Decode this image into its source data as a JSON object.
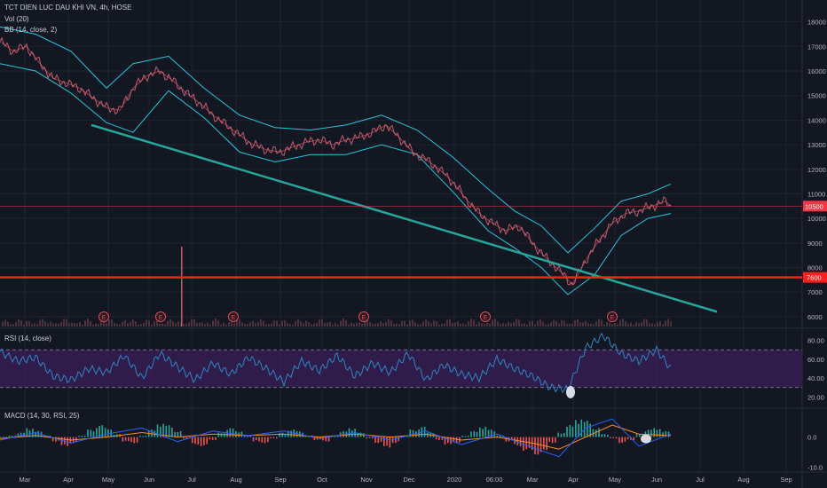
{
  "header": {
    "symbol_line": "TCT DIEN LUC DAU KHI VN, 4h, HOSE",
    "volume_label": "Vol (20)",
    "bb_label": "BB (14, close, 2)",
    "rsi_label": "RSI (14, close)",
    "macd_label": "MACD (14, 30, RSI, 25)"
  },
  "colors": {
    "background": "#131722",
    "grid": "#1f2333",
    "axis_text": "#b2b5be",
    "candle_line": "#c05a6a",
    "bollinger": "#26c6da",
    "trendline": "#26a69a",
    "support_line": "#ff1e1e",
    "price_marker": "#f23645",
    "rsi_band": "#3b1f5a",
    "rsi_line": "#2e86c1",
    "macd_line": "#2962ff",
    "signal_line": "#ff8c1a",
    "hist_up": "#26a69a",
    "hist_down": "#ef5350"
  },
  "chart_data": [
    {
      "type": "line",
      "pane": "price",
      "x_tick_labels": [
        "Mar",
        "Apr",
        "May",
        "Jun",
        "Jul",
        "Aug",
        "Sep",
        "Oct",
        "Nov",
        "Dec",
        "2020",
        "06:00",
        "Mar",
        "Apr",
        "May",
        "Jun",
        "Jul",
        "Aug",
        "Sep"
      ],
      "y_ticks": [
        6000,
        7000,
        8000,
        9000,
        10000,
        11000,
        12000,
        13000,
        14000,
        15000,
        16000,
        17000,
        18000
      ],
      "ylim": [
        5600,
        18600
      ],
      "price_path": {
        "x": [
          0,
          15,
          30,
          45,
          60,
          75,
          90,
          105,
          120,
          135,
          150,
          165,
          180,
          195,
          210,
          225,
          240,
          255,
          270,
          285,
          300,
          315,
          330,
          345,
          360,
          375,
          390,
          405,
          420,
          435,
          450,
          465,
          480,
          495,
          510,
          525,
          540,
          555,
          570,
          585,
          600,
          615,
          630,
          645,
          660,
          675,
          690,
          705,
          720,
          735,
          750,
          756
        ],
        "y": [
          17200,
          16800,
          17000,
          16300,
          15700,
          15500,
          15300,
          14900,
          14500,
          14400,
          15300,
          15800,
          16000,
          15600,
          15100,
          14700,
          14200,
          13800,
          13400,
          13000,
          12800,
          12700,
          12900,
          13100,
          13200,
          13000,
          13200,
          13300,
          13500,
          13800,
          13300,
          12700,
          12400,
          12000,
          11500,
          10800,
          10200,
          9800,
          9500,
          9700,
          9000,
          8400,
          7900,
          7300,
          8300,
          9100,
          9800,
          10200,
          10300,
          10500,
          10700,
          10500
        ]
      },
      "bollinger_upper": {
        "x": [
          0,
          40,
          80,
          120,
          150,
          190,
          230,
          270,
          310,
          350,
          390,
          430,
          470,
          510,
          550,
          580,
          610,
          640,
          670,
          700,
          730,
          756
        ],
        "y": [
          17800,
          17500,
          16800,
          15300,
          16300,
          16600,
          15300,
          14200,
          13700,
          13600,
          13800,
          14200,
          13600,
          12500,
          11200,
          10300,
          9700,
          8600,
          9600,
          10700,
          11000,
          11400
        ]
      },
      "bollinger_lower": {
        "x": [
          0,
          40,
          80,
          120,
          150,
          190,
          230,
          270,
          310,
          350,
          390,
          430,
          470,
          510,
          550,
          580,
          610,
          640,
          670,
          700,
          730,
          756
        ],
        "y": [
          16300,
          16000,
          15100,
          13900,
          13500,
          15200,
          14100,
          12700,
          12300,
          12600,
          12600,
          13000,
          12600,
          11100,
          9500,
          8800,
          8000,
          6900,
          7700,
          9300,
          10000,
          10200
        ]
      },
      "trendline": {
        "x": [
          103,
          808
        ],
        "y": [
          13800,
          6200
        ]
      },
      "support_level": 7600,
      "last_price": 10500,
      "last_price_label": "10500",
      "support_label": "7600",
      "earnings_marker_label": "E",
      "earnings_x": [
        117,
        181,
        263,
        410,
        547,
        690
      ],
      "volume_spike": {
        "x": 204
      }
    },
    {
      "type": "line",
      "pane": "rsi",
      "y_ticks": [
        20,
        40,
        60,
        80
      ],
      "y_tick_labels": [
        "20.00",
        "40.00",
        "60.00",
        "80.00"
      ],
      "ylim": [
        10,
        90
      ],
      "band": [
        30,
        70
      ],
      "points": {
        "x": [
          0,
          20,
          40,
          60,
          80,
          100,
          120,
          140,
          160,
          180,
          200,
          220,
          240,
          260,
          280,
          300,
          320,
          340,
          360,
          380,
          400,
          420,
          440,
          460,
          480,
          500,
          520,
          540,
          560,
          580,
          600,
          620,
          640,
          660,
          680,
          700,
          720,
          740,
          756
        ],
        "y": [
          68,
          58,
          62,
          42,
          38,
          50,
          46,
          64,
          40,
          66,
          52,
          38,
          56,
          44,
          62,
          50,
          36,
          58,
          48,
          64,
          42,
          56,
          46,
          66,
          38,
          54,
          44,
          40,
          60,
          50,
          42,
          30,
          28,
          72,
          85,
          66,
          58,
          70,
          50
        ]
      },
      "highlight_x": 643
    },
    {
      "type": "bar",
      "pane": "macd",
      "y_ticks": [
        0.0,
        -10.0
      ],
      "y_tick_labels": [
        "0.0",
        "-10.0"
      ],
      "ylim": [
        -11,
        9
      ],
      "histogram": [
        0,
        0.5,
        1.5,
        3,
        2,
        0.5,
        -1.5,
        -3,
        -2,
        0.5,
        2.5,
        4,
        3,
        1,
        -1.5,
        -2,
        0.5,
        2.5,
        4.5,
        4,
        2,
        -0.5,
        -2.5,
        -3,
        -1,
        1.5,
        3,
        2,
        0.5,
        -1.5,
        -2,
        -0.5,
        1.5,
        2.5,
        2,
        0.5,
        -1,
        -1.5,
        0.5,
        2,
        3,
        1.5,
        -0.5,
        -2,
        -3.5,
        -2,
        0.5,
        2.5,
        3.5,
        1.5,
        -1,
        -2.5,
        -2,
        0.5,
        2,
        3.5,
        2.5,
        0.5,
        -1.5,
        -3,
        -4.5,
        -6,
        -5,
        -2,
        1.5,
        4,
        6,
        5.5,
        3,
        1,
        -0.5,
        -2,
        -1,
        1,
        2.5,
        3,
        2
      ],
      "macd_points": {
        "x": [
          0,
          40,
          80,
          120,
          160,
          200,
          240,
          280,
          320,
          360,
          400,
          440,
          480,
          520,
          560,
          600,
          630,
          660,
          690,
          720,
          756
        ],
        "y": [
          -1,
          1.5,
          -2,
          1,
          3,
          -1.5,
          2,
          0.5,
          2,
          -0.5,
          1.5,
          -1,
          2,
          -2.5,
          1,
          -3.5,
          -6.5,
          3,
          6,
          -3,
          1
        ]
      },
      "signal_points": {
        "x": [
          0,
          40,
          80,
          120,
          160,
          200,
          240,
          280,
          320,
          360,
          400,
          440,
          480,
          520,
          560,
          600,
          630,
          660,
          690,
          720,
          756
        ],
        "y": [
          -0.5,
          0.5,
          -1,
          0,
          1.5,
          0,
          1,
          0.5,
          1,
          0,
          1,
          0,
          1,
          -1,
          0,
          -2,
          -4,
          0,
          4,
          1,
          0.5
        ]
      },
      "highlight_x": 728
    }
  ]
}
